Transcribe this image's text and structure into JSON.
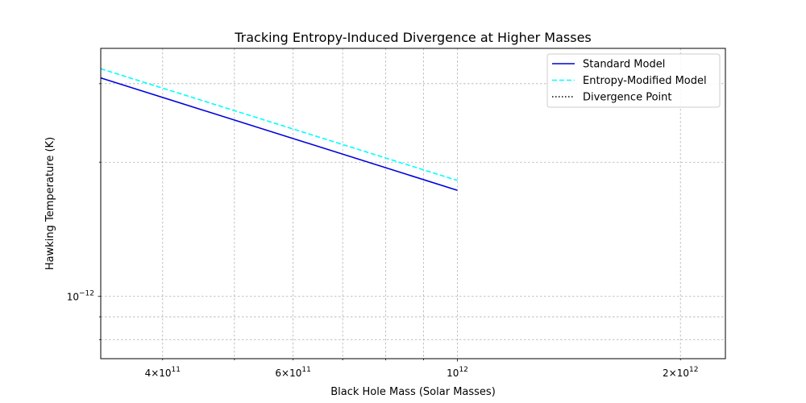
{
  "chart_data": {
    "type": "line",
    "title": "Tracking Entropy-Induced Divergence at Higher Masses",
    "xlabel": "Black Hole Mass (Solar Masses)",
    "ylabel": "Hawking Temperature (K)",
    "xscale": "log",
    "yscale": "log",
    "xlim": [
      330000000000.0,
      2300000000000.0
    ],
    "ylim": [
      7.25e-13,
      3.6e-12
    ],
    "grid": true,
    "legend_position": "top-right",
    "x_tick_labels": [
      {
        "value": 400000000000.0,
        "mantissa": "4",
        "base": "10",
        "exp": "11"
      },
      {
        "value": 600000000000.0,
        "mantissa": "6",
        "base": "10",
        "exp": "11"
      },
      {
        "value": 1000000000000.0,
        "mantissa": "",
        "base": "10",
        "exp": "12"
      },
      {
        "value": 2000000000000.0,
        "mantissa": "2",
        "base": "10",
        "exp": "12"
      }
    ],
    "y_tick_labels": [
      {
        "value": 1e-12,
        "mantissa": "",
        "base": "10",
        "exp": "−12"
      }
    ],
    "series": [
      {
        "name": "Standard Model",
        "color": "#0000dd",
        "style": "solid",
        "x": [
          330000000000.0,
          1000000000000.0
        ],
        "y": [
          3.09e-12,
          1.73e-12
        ]
      },
      {
        "name": "Entropy-Modified Model",
        "color": "#00ffff",
        "style": "dashed",
        "x": [
          330000000000.0,
          1000000000000.0
        ],
        "y": [
          3.24e-12,
          1.82e-12
        ]
      },
      {
        "name": "Divergence Point",
        "color": "#000000",
        "style": "dotted",
        "x": [],
        "y": []
      }
    ]
  }
}
